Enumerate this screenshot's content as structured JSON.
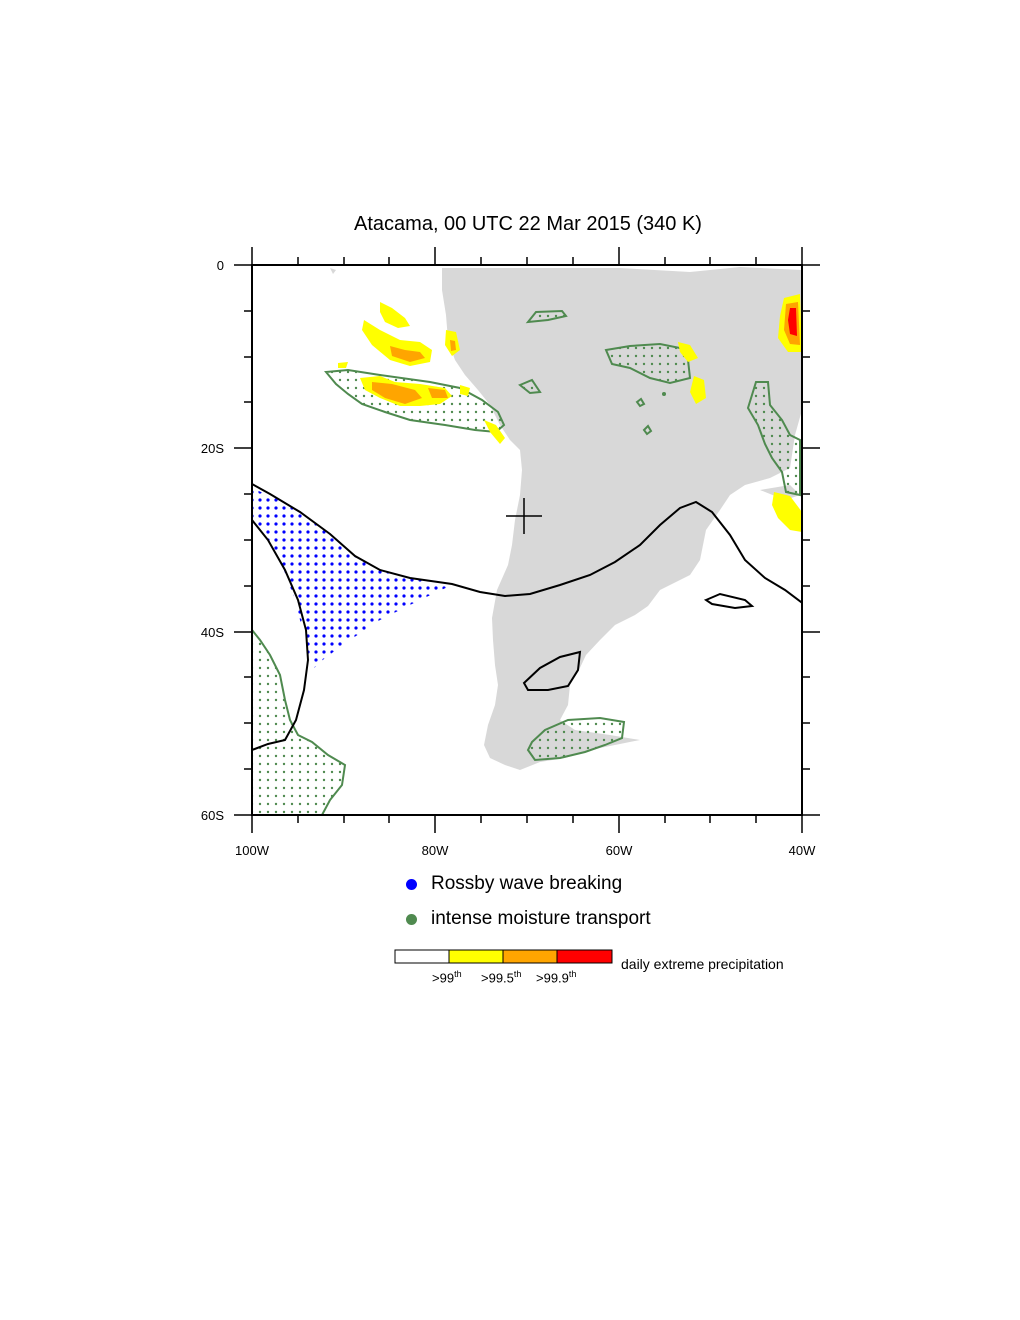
{
  "title": "Atacama, 00 UTC 22 Mar 2015 (340 K)",
  "axes": {
    "x_ticks": [
      "100W",
      "80W",
      "60W",
      "40W"
    ],
    "y_ticks": [
      "0",
      "20S",
      "40S",
      "60S"
    ]
  },
  "legend": {
    "rossby": {
      "label": "Rossby wave breaking",
      "color": "#0000ff"
    },
    "moisture": {
      "label": "intense moisture transport",
      "color": "#4f8a4f"
    }
  },
  "colorbar": {
    "caption": "daily extreme precipitation",
    "labels": [
      {
        "base": ">99",
        "sup": "th"
      },
      {
        "base": ">99.5",
        "sup": "th"
      },
      {
        "base": ">99.9",
        "sup": "th"
      }
    ],
    "colors": [
      "#ffffff",
      "#ffff00",
      "#ffa500",
      "#ff0000"
    ]
  },
  "map_colors": {
    "land": "#d8d8d8",
    "contour": "#000000",
    "moisture_outline": "#4f8a4f"
  }
}
